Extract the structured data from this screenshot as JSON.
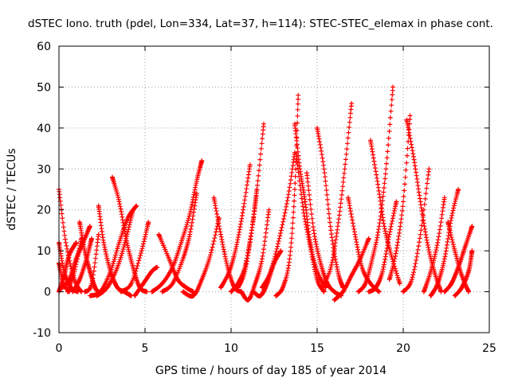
{
  "chart_data": {
    "type": "scatter",
    "title": "dSTEC Iono. truth (pdel, Lon=334, Lat=37, h=114): STEC-STEC_elemax in phase cont.",
    "xlabel": "GPS time / hours of day 185 of year 2014",
    "ylabel": "dSTEC  / TECUs",
    "xlim": [
      0,
      25
    ],
    "ylim": [
      -10,
      60
    ],
    "x_ticks": [
      "0",
      "5",
      "10",
      "15",
      "20",
      "25"
    ],
    "y_ticks": [
      "-10",
      "0",
      "10",
      "20",
      "30",
      "40",
      "50",
      "60"
    ],
    "grid": true,
    "legend": "none",
    "marker": "plus",
    "color": "#ff0000",
    "series": [
      {
        "x": [
          0.0,
          0.4,
          0.9,
          1.3
        ],
        "y": [
          25,
          12,
          3,
          0
        ]
      },
      {
        "x": [
          0.0,
          0.3,
          0.7,
          1.1
        ],
        "y": [
          12,
          5,
          1,
          0
        ]
      },
      {
        "x": [
          0.0,
          0.25,
          0.6
        ],
        "y": [
          7,
          2,
          0
        ]
      },
      {
        "x": [
          0.0,
          0.3,
          0.6,
          1.0
        ],
        "y": [
          0,
          4,
          9,
          12
        ]
      },
      {
        "x": [
          0.2,
          0.6,
          1.0,
          1.4,
          1.8
        ],
        "y": [
          1,
          3,
          8,
          12,
          16
        ]
      },
      {
        "x": [
          0.5,
          0.9,
          1.3
        ],
        "y": [
          0,
          5,
          13
        ]
      },
      {
        "x": [
          1.2,
          1.5,
          1.8,
          2.1,
          2.3
        ],
        "y": [
          17,
          10,
          5,
          1,
          0
        ]
      },
      {
        "x": [
          0.8,
          1.2,
          1.6,
          1.9
        ],
        "y": [
          0,
          3,
          8,
          13
        ]
      },
      {
        "x": [
          1.5,
          1.9,
          2.3
        ],
        "y": [
          0,
          2,
          14
        ]
      },
      {
        "x": [
          2.3,
          2.6,
          3.0,
          3.4,
          3.8,
          4.2
        ],
        "y": [
          21,
          12,
          5,
          1,
          0,
          -1
        ]
      },
      {
        "x": [
          3.1,
          3.5,
          3.9,
          4.3,
          4.7,
          5.1
        ],
        "y": [
          28,
          22,
          13,
          6,
          1,
          0
        ]
      },
      {
        "x": [
          1.8,
          2.4,
          3.0,
          3.5,
          4.0,
          4.5
        ],
        "y": [
          -1,
          0,
          5,
          12,
          18,
          21
        ]
      },
      {
        "x": [
          2.2,
          2.8,
          3.4,
          3.9,
          4.3
        ],
        "y": [
          -1,
          1,
          6,
          13,
          20
        ]
      },
      {
        "x": [
          3.6,
          4.2,
          4.8,
          5.2
        ],
        "y": [
          0,
          2,
          10,
          17
        ]
      },
      {
        "x": [
          4.4,
          4.9,
          5.4,
          5.7
        ],
        "y": [
          -1,
          2,
          5,
          6
        ]
      },
      {
        "x": [
          5.8,
          6.4,
          6.9,
          7.4,
          7.8
        ],
        "y": [
          14,
          8,
          3,
          1,
          0
        ]
      },
      {
        "x": [
          5.4,
          6.0,
          6.6,
          7.1,
          7.6,
          8.0,
          8.3
        ],
        "y": [
          0,
          2,
          6,
          12,
          19,
          27,
          32
        ]
      },
      {
        "x": [
          6.0,
          6.6,
          7.2,
          7.6,
          8.0
        ],
        "y": [
          0,
          2,
          8,
          14,
          24
        ]
      },
      {
        "x": [
          7.2,
          7.8,
          8.3,
          8.8,
          9.3
        ],
        "y": [
          0,
          -1,
          3,
          9,
          18
        ]
      },
      {
        "x": [
          9.0,
          9.4,
          9.8,
          10.2,
          10.6
        ],
        "y": [
          23,
          14,
          6,
          1,
          0
        ]
      },
      {
        "x": [
          9.4,
          9.9,
          10.3,
          10.7,
          11.1
        ],
        "y": [
          1,
          5,
          11,
          20,
          31
        ]
      },
      {
        "x": [
          10.0,
          10.4,
          10.8,
          11.2,
          11.5
        ],
        "y": [
          0,
          2,
          6,
          15,
          25
        ]
      },
      {
        "x": [
          10.4,
          10.8,
          11.2,
          11.5,
          11.9
        ],
        "y": [
          1,
          5,
          15,
          25,
          41
        ]
      },
      {
        "x": [
          10.6,
          11.0,
          11.4,
          11.8,
          12.2
        ],
        "y": [
          0,
          -2,
          2,
          8,
          20
        ]
      },
      {
        "x": [
          11.3,
          11.7,
          12.1,
          12.5,
          12.9
        ],
        "y": [
          0,
          -1,
          2,
          7,
          10
        ]
      },
      {
        "x": [
          11.8,
          12.3,
          12.8,
          13.3,
          13.7
        ],
        "y": [
          1,
          5,
          13,
          23,
          34
        ]
      },
      {
        "x": [
          12.6,
          13.0,
          13.4,
          13.7,
          13.9
        ],
        "y": [
          -1,
          1,
          8,
          25,
          48
        ]
      },
      {
        "x": [
          13.7,
          14.0,
          14.3,
          14.6,
          15.0,
          15.5
        ],
        "y": [
          41,
          30,
          22,
          12,
          5,
          1
        ]
      },
      {
        "x": [
          13.8,
          14.2,
          14.6,
          15.0,
          15.4
        ],
        "y": [
          33,
          20,
          11,
          3,
          0
        ]
      },
      {
        "x": [
          14.4,
          14.8,
          15.2,
          15.6,
          16.0,
          16.4
        ],
        "y": [
          29,
          15,
          7,
          2,
          0,
          -1
        ]
      },
      {
        "x": [
          15.0,
          15.4,
          15.8,
          16.2,
          16.5
        ],
        "y": [
          40,
          30,
          15,
          5,
          1
        ]
      },
      {
        "x": [
          15.3,
          15.8,
          16.2,
          16.6,
          17.0
        ],
        "y": [
          1,
          6,
          16,
          30,
          46
        ]
      },
      {
        "x": [
          16.0,
          16.5,
          17.0,
          17.5,
          18.0
        ],
        "y": [
          -2,
          0,
          4,
          8,
          13
        ]
      },
      {
        "x": [
          16.8,
          17.2,
          17.6,
          18.1,
          18.6
        ],
        "y": [
          23,
          14,
          6,
          2,
          0
        ]
      },
      {
        "x": [
          17.4,
          17.8,
          18.2,
          18.6,
          19.0,
          19.4
        ],
        "y": [
          0,
          2,
          8,
          16,
          30,
          50
        ]
      },
      {
        "x": [
          18.0,
          18.4,
          18.8,
          19.2,
          19.6
        ],
        "y": [
          0,
          1,
          5,
          14,
          22
        ]
      },
      {
        "x": [
          18.1,
          18.5,
          18.9,
          19.3,
          19.8
        ],
        "y": [
          37,
          27,
          16,
          9,
          2
        ]
      },
      {
        "x": [
          19.2,
          19.6,
          20.0,
          20.4
        ],
        "y": [
          3,
          10,
          22,
          43
        ]
      },
      {
        "x": [
          20.2,
          20.6,
          21.0,
          21.4,
          21.8,
          22.2
        ],
        "y": [
          42,
          33,
          22,
          12,
          5,
          0
        ]
      },
      {
        "x": [
          20.0,
          20.5,
          21.0,
          21.5
        ],
        "y": [
          0,
          3,
          14,
          30
        ]
      },
      {
        "x": [
          21.2,
          21.6,
          22.0,
          22.4
        ],
        "y": [
          0,
          5,
          12,
          23
        ]
      },
      {
        "x": [
          21.6,
          22.0,
          22.4,
          22.8,
          23.2
        ],
        "y": [
          -1,
          2,
          8,
          18,
          25
        ]
      },
      {
        "x": [
          22.6,
          23.0,
          23.4,
          23.8
        ],
        "y": [
          17,
          10,
          4,
          0
        ]
      },
      {
        "x": [
          22.4,
          22.8,
          23.2,
          23.6,
          24.0
        ],
        "y": [
          0,
          2,
          6,
          11,
          16
        ]
      },
      {
        "x": [
          23.0,
          23.4,
          23.8,
          24.0
        ],
        "y": [
          -1,
          1,
          5,
          10
        ]
      }
    ]
  }
}
